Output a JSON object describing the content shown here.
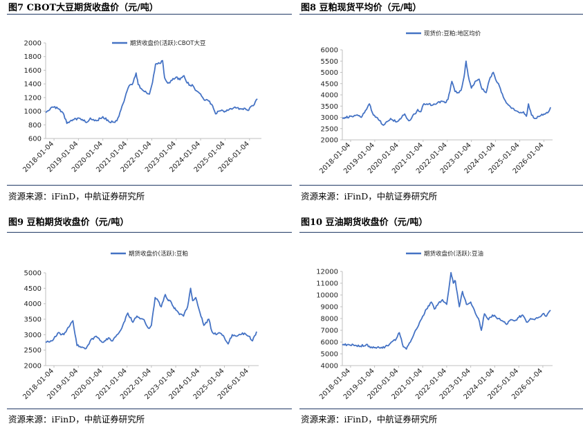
{
  "source_text": "资源来源：iFinD，中航证券研究所",
  "colors": {
    "series": "#4472c4",
    "rule": "#1f3864",
    "axis": "#bfbfbf"
  },
  "chart_data": [
    {
      "type": "line",
      "figure_title": "图7  CBOT大豆期货收盘价（元/吨）",
      "legend": "期货收盘价(活跃):CBOT大豆",
      "xlabel": "",
      "ylabel": "",
      "ylim": [
        600,
        2000
      ],
      "yticks": [
        600,
        800,
        1000,
        1200,
        1400,
        1600,
        1800,
        2000
      ],
      "xlim": [
        "2017-09-01",
        "2026-07-01"
      ],
      "xticks": [
        "2018-01-04",
        "2019-01-04",
        "2020-01-04",
        "2021-01-04",
        "2022-01-04",
        "2023-01-04",
        "2024-01-04",
        "2025-01-04",
        "2026-01-04"
      ],
      "series": [
        {
          "x": [
            "2017-09-01",
            "2017-12-01",
            "2018-03-01",
            "2018-06-01",
            "2018-07-15",
            "2018-10-01",
            "2019-01-04",
            "2019-05-15",
            "2019-07-01",
            "2019-10-01",
            "2020-01-04",
            "2020-04-01",
            "2020-06-01",
            "2020-08-01",
            "2020-10-01",
            "2020-12-01",
            "2021-01-15",
            "2021-04-01",
            "2021-05-15",
            "2021-06-15",
            "2021-09-01",
            "2021-12-01",
            "2022-01-15",
            "2022-03-01",
            "2022-05-01",
            "2022-06-15",
            "2022-07-15",
            "2022-09-01",
            "2022-11-01",
            "2023-01-04",
            "2023-03-01",
            "2023-05-01",
            "2023-06-01",
            "2023-08-01",
            "2023-09-15",
            "2023-11-01",
            "2024-01-04",
            "2024-03-01",
            "2024-05-01",
            "2024-07-01",
            "2024-08-15",
            "2024-10-01",
            "2024-12-01",
            "2025-01-04",
            "2025-03-01",
            "2025-05-01",
            "2025-07-01",
            "2025-09-01",
            "2025-11-01",
            "2025-12-15",
            "2026-01-15",
            "2026-03-01",
            "2026-05-01"
          ],
          "values": [
            980,
            1060,
            1040,
            950,
            820,
            860,
            900,
            840,
            900,
            860,
            920,
            850,
            840,
            860,
            1020,
            1200,
            1340,
            1420,
            1560,
            1390,
            1300,
            1250,
            1420,
            1690,
            1700,
            1740,
            1490,
            1410,
            1450,
            1500,
            1460,
            1520,
            1440,
            1380,
            1370,
            1300,
            1250,
            1160,
            1150,
            1080,
            960,
            1000,
            1010,
            1000,
            1020,
            1040,
            1050,
            1030,
            1040,
            1010,
            1060,
            1080,
            1180
          ]
        }
      ]
    },
    {
      "type": "line",
      "figure_title": "图8  豆粕现货平均价（元/吨）",
      "legend": "现货价:豆粕:地区均价",
      "xlabel": "",
      "ylabel": "",
      "ylim": [
        2000,
        6000
      ],
      "yticks": [
        2000,
        2500,
        3000,
        3500,
        4000,
        4500,
        5000,
        5500,
        6000
      ],
      "xlim": [
        "2017-09-01",
        "2026-05-15"
      ],
      "xticks": [
        "2018-01-04",
        "2019-01-04",
        "2020-01-04",
        "2021-01-04",
        "2022-01-04",
        "2023-01-04",
        "2024-01-04",
        "2025-01-04",
        "2026-01-04"
      ],
      "series": [
        {
          "x": [
            "2017-09-01",
            "2018-01-04",
            "2018-04-01",
            "2018-06-15",
            "2018-09-01",
            "2018-10-15",
            "2018-12-15",
            "2019-03-01",
            "2019-05-15",
            "2019-06-15",
            "2019-09-01",
            "2019-12-01",
            "2020-02-15",
            "2020-04-01",
            "2020-06-01",
            "2020-09-01",
            "2020-10-15",
            "2020-12-01",
            "2021-01-04",
            "2021-03-01",
            "2021-06-01",
            "2021-09-01",
            "2021-12-01",
            "2022-01-15",
            "2022-03-15",
            "2022-05-01",
            "2022-06-15",
            "2022-08-01",
            "2022-09-15",
            "2022-10-15",
            "2022-11-15",
            "2023-01-04",
            "2023-03-01",
            "2023-05-01",
            "2023-06-15",
            "2023-08-15",
            "2023-10-01",
            "2023-12-01",
            "2024-01-04",
            "2024-03-01",
            "2024-05-01",
            "2024-07-01",
            "2024-09-01",
            "2024-11-01",
            "2025-01-04",
            "2025-03-01",
            "2025-04-15",
            "2025-05-15",
            "2025-07-01",
            "2025-09-01",
            "2025-11-01",
            "2026-01-04",
            "2026-03-01",
            "2026-04-15"
          ],
          "values": [
            2950,
            3050,
            3100,
            3000,
            3350,
            3600,
            3100,
            2900,
            2650,
            2750,
            2950,
            2800,
            3000,
            3150,
            2850,
            3150,
            3350,
            3250,
            3550,
            3600,
            3550,
            3700,
            3650,
            3800,
            4600,
            4150,
            4100,
            4200,
            4800,
            5500,
            4900,
            4300,
            4600,
            4700,
            4250,
            4100,
            4650,
            5000,
            4700,
            4400,
            3900,
            3600,
            3400,
            3300,
            3200,
            3250,
            3050,
            3600,
            3100,
            2950,
            3050,
            3150,
            3200,
            3450
          ]
        }
      ]
    },
    {
      "type": "line",
      "figure_title": "图9  豆粕期货收盘价（元/吨）",
      "legend": "期货收盘价(活跃):豆粕",
      "xlabel": "",
      "ylabel": "",
      "ylim": [
        2000,
        5000
      ],
      "yticks": [
        2000,
        2500,
        3000,
        3500,
        4000,
        4500,
        5000
      ],
      "xlim": [
        "2017-09-01",
        "2026-06-01"
      ],
      "xticks": [
        "2018-01-04",
        "2019-01-04",
        "2020-01-04",
        "2021-01-04",
        "2022-01-04",
        "2023-01-04",
        "2024-01-04",
        "2025-01-04",
        "2026-01-04"
      ],
      "series": [
        {
          "x": [
            "2017-09-01",
            "2017-12-01",
            "2018-03-01",
            "2018-06-01",
            "2018-09-01",
            "2018-10-15",
            "2018-12-15",
            "2019-03-01",
            "2019-05-01",
            "2019-07-01",
            "2019-10-01",
            "2020-01-04",
            "2020-04-01",
            "2020-06-01",
            "2020-09-01",
            "2020-11-01",
            "2021-01-15",
            "2021-04-01",
            "2021-06-01",
            "2021-09-01",
            "2021-12-01",
            "2022-01-04",
            "2022-03-01",
            "2022-04-15",
            "2022-06-01",
            "2022-08-01",
            "2022-09-15",
            "2022-10-15",
            "2022-12-01",
            "2023-01-04",
            "2023-03-01",
            "2023-05-01",
            "2023-07-01",
            "2023-08-15",
            "2023-09-15",
            "2023-11-01",
            "2024-01-04",
            "2024-03-01",
            "2024-05-15",
            "2024-07-01",
            "2024-09-01",
            "2024-11-01",
            "2025-01-04",
            "2025-03-01",
            "2025-05-01",
            "2025-07-01",
            "2025-09-01",
            "2025-11-01",
            "2026-01-04",
            "2026-03-01",
            "2026-05-01"
          ],
          "values": [
            2750,
            2800,
            3050,
            3000,
            3300,
            3450,
            2650,
            2600,
            2550,
            2800,
            2950,
            2750,
            2900,
            2800,
            3050,
            3300,
            3700,
            3400,
            3600,
            3500,
            3200,
            3300,
            4200,
            4100,
            3900,
            4300,
            4100,
            4100,
            3900,
            3800,
            3650,
            3600,
            3900,
            4500,
            4100,
            4200,
            3700,
            3300,
            3500,
            3100,
            3000,
            3050,
            2900,
            2700,
            3000,
            2950,
            3000,
            3050,
            2950,
            2800,
            3100
          ]
        }
      ]
    },
    {
      "type": "line",
      "figure_title": "图10  豆油期货收盘价（元/吨）",
      "legend": "期货收盘价(活跃):豆油",
      "xlabel": "",
      "ylabel": "",
      "ylim": [
        4000,
        12000
      ],
      "yticks": [
        4000,
        5000,
        6000,
        7000,
        8000,
        9000,
        10000,
        11000,
        12000
      ],
      "xlim": [
        "2017-09-01",
        "2026-06-01"
      ],
      "xticks": [
        "2018-01-04",
        "2019-01-04",
        "2020-01-04",
        "2021-01-04",
        "2022-01-04",
        "2023-01-04",
        "2024-01-04",
        "2025-01-04",
        "2026-01-04"
      ],
      "series": [
        {
          "x": [
            "2017-09-01",
            "2017-12-01",
            "2018-03-01",
            "2018-06-01",
            "2018-09-01",
            "2018-12-01",
            "2019-03-01",
            "2019-06-01",
            "2019-09-01",
            "2019-12-01",
            "2020-01-15",
            "2020-03-15",
            "2020-05-01",
            "2020-07-01",
            "2020-09-01",
            "2020-11-01",
            "2021-01-04",
            "2021-03-01",
            "2021-05-15",
            "2021-07-01",
            "2021-09-01",
            "2021-11-01",
            "2022-01-04",
            "2022-03-10",
            "2022-04-15",
            "2022-05-15",
            "2022-07-15",
            "2022-09-01",
            "2022-11-01",
            "2023-01-04",
            "2023-03-01",
            "2023-05-01",
            "2023-06-15",
            "2023-08-01",
            "2023-10-01",
            "2023-12-01",
            "2024-03-01",
            "2024-05-01",
            "2024-07-01",
            "2024-09-01",
            "2024-11-01",
            "2025-01-04",
            "2025-03-01",
            "2025-05-01",
            "2025-07-01",
            "2025-09-01",
            "2025-11-01",
            "2026-01-04",
            "2026-03-01",
            "2026-05-01"
          ],
          "values": [
            5750,
            5800,
            5700,
            5650,
            5800,
            5500,
            5600,
            5500,
            5900,
            6300,
            6800,
            5600,
            5400,
            6000,
            6800,
            7400,
            8200,
            8800,
            9400,
            8800,
            9300,
            9600,
            9200,
            11900,
            11000,
            11200,
            9000,
            10300,
            9200,
            9400,
            8700,
            8000,
            7000,
            8400,
            7900,
            8300,
            8000,
            7800,
            7500,
            7900,
            7800,
            8100,
            8300,
            7700,
            8000,
            7900,
            8100,
            8400,
            8200,
            8700
          ]
        }
      ]
    }
  ]
}
